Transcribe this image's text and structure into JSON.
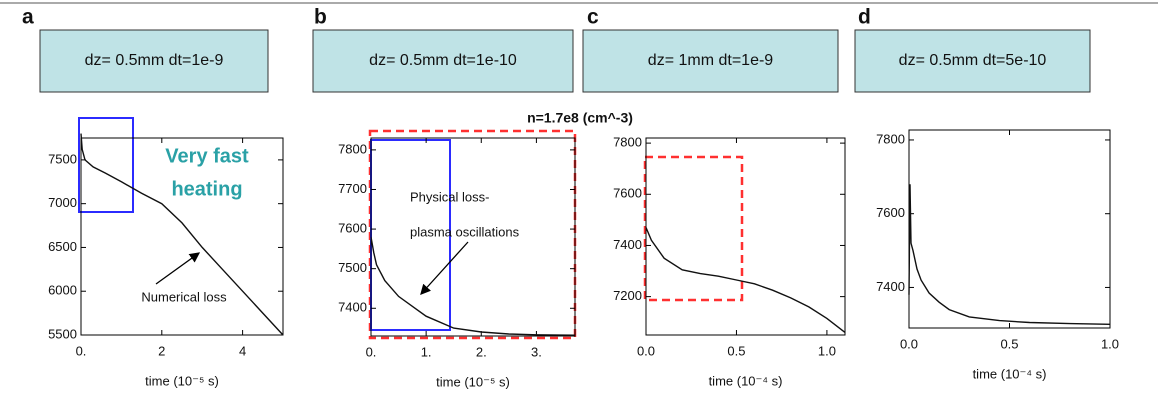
{
  "chart_data": [
    {
      "type": "line",
      "panel_label": "a",
      "header": "dz= 0.5mm dt=1e-9",
      "xlabel": "time (10⁻⁵ s)",
      "x": [
        0,
        0.03,
        0.1,
        0.3,
        0.6,
        1.0,
        1.5,
        2.0,
        2.5,
        3.0,
        3.5,
        4.0,
        4.5,
        5.0
      ],
      "series": [
        {
          "color": "#111111",
          "values": [
            7800,
            7620,
            7500,
            7420,
            7350,
            7250,
            7120,
            7000,
            6780,
            6500,
            6250,
            6000,
            5750,
            5500
          ]
        }
      ],
      "xlim": [
        0,
        5
      ],
      "ylim": [
        5500,
        7750
      ],
      "xticks": [
        {
          "value": 0,
          "label": "0."
        },
        2,
        4
      ],
      "yticks": [
        5500,
        6000,
        6500,
        7000,
        7500
      ],
      "annotations": [
        "Very fast",
        "heating",
        "Numerical loss"
      ]
    },
    {
      "type": "line",
      "panel_label": "b",
      "header": "dz= 0.5mm dt=1e-10",
      "xlabel": "time (10⁻⁵ s)",
      "x": [
        0,
        0.05,
        0.1,
        0.25,
        0.5,
        0.8,
        1.0,
        1.5,
        2.0,
        2.5,
        3.0,
        3.7
      ],
      "series": [
        {
          "color": "#111111",
          "values": [
            7580,
            7540,
            7510,
            7470,
            7430,
            7400,
            7380,
            7350,
            7340,
            7335,
            7333,
            7332
          ]
        }
      ],
      "xlim": [
        0,
        3.7
      ],
      "ylim": [
        7330,
        7830
      ],
      "xticks": [
        {
          "value": 0,
          "label": "0."
        },
        {
          "value": 1,
          "label": "1."
        },
        {
          "value": 2,
          "label": "2."
        },
        {
          "value": 3,
          "label": "3."
        }
      ],
      "yticks": [
        7400,
        7500,
        7600,
        7700,
        7800
      ],
      "annotations": [
        "n=1.7e8 (cm^-3)",
        "Physical loss-",
        "plasma oscillations"
      ]
    },
    {
      "type": "line",
      "panel_label": "c",
      "header": "dz= 1mm dt=1e-9",
      "xlabel": "time (10⁻⁴ s)",
      "x": [
        0,
        0.03,
        0.1,
        0.2,
        0.3,
        0.4,
        0.5,
        0.6,
        0.7,
        0.8,
        0.9,
        1.0,
        1.1
      ],
      "series": [
        {
          "color": "#111111",
          "values": [
            7470,
            7420,
            7350,
            7305,
            7290,
            7280,
            7265,
            7250,
            7225,
            7195,
            7160,
            7115,
            7060
          ]
        }
      ],
      "xlim": [
        0,
        1.1
      ],
      "ylim": [
        7050,
        7820
      ],
      "xticks": [
        {
          "value": 0,
          "label": "0.0"
        },
        0.5,
        {
          "value": 1,
          "label": "1.0"
        }
      ],
      "yticks": [
        7200,
        7400,
        7600,
        7800
      ],
      "annotations": []
    },
    {
      "type": "line",
      "panel_label": "d",
      "header": "dz= 0.5mm dt=5e-10",
      "xlabel": "time (10⁻⁴ s)",
      "x": [
        0,
        0.005,
        0.01,
        0.02,
        0.04,
        0.06,
        0.1,
        0.15,
        0.2,
        0.3,
        0.45,
        0.6,
        0.8,
        1.0
      ],
      "series": [
        {
          "color": "#111111",
          "values": [
            7380,
            7680,
            7520,
            7500,
            7450,
            7420,
            7385,
            7360,
            7340,
            7320,
            7310,
            7305,
            7302,
            7300
          ]
        }
      ],
      "xlim": [
        0,
        1.0
      ],
      "ylim": [
        7290,
        7827
      ],
      "xticks": [
        {
          "value": 0,
          "label": "0.0"
        },
        0.5,
        {
          "value": 1,
          "label": "1.0"
        }
      ],
      "yticks": [
        7400,
        7600,
        7800
      ],
      "annotations": []
    }
  ]
}
